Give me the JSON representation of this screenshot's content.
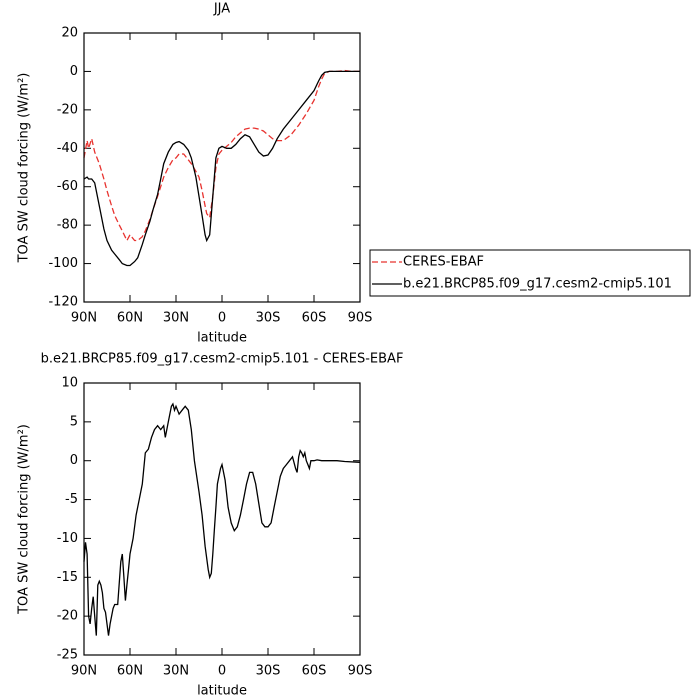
{
  "chart_data": [
    {
      "type": "line",
      "title": "JJA",
      "xlabel": "latitude",
      "ylabel": "TOA SW cloud forcing (W/m²)",
      "x": [
        90,
        88,
        87,
        85,
        83,
        80,
        77,
        75,
        72,
        70,
        67,
        65,
        62,
        60,
        57,
        55,
        52,
        50,
        47,
        45,
        42,
        40,
        38,
        35,
        32,
        30,
        28,
        25,
        22,
        20,
        17,
        15,
        13,
        11,
        10,
        8,
        6,
        4,
        2,
        0,
        -3,
        -6,
        -9,
        -12,
        -15,
        -18,
        -21,
        -24,
        -27,
        -30,
        -33,
        -36,
        -40,
        -45,
        -50,
        -55,
        -60,
        -63,
        -65,
        -67,
        -70,
        -75,
        -80,
        -85,
        -90
      ],
      "series": [
        {
          "name": "CERES-EBAF",
          "color": "#e8332f",
          "dash": true,
          "values": [
            -45,
            -36,
            -40,
            -35,
            -42,
            -48,
            -56,
            -62,
            -70,
            -75,
            -80,
            -83,
            -88,
            -85,
            -88,
            -88,
            -86,
            -83,
            -77,
            -72,
            -65,
            -60,
            -55,
            -50,
            -46,
            -45,
            -43,
            -43,
            -46,
            -48,
            -52,
            -55,
            -62,
            -70,
            -74,
            -76,
            -65,
            -50,
            -43,
            -41,
            -39,
            -37,
            -34,
            -32,
            -30,
            -29.5,
            -29.5,
            -30,
            -31,
            -33,
            -35,
            -36,
            -36,
            -33,
            -28,
            -22,
            -15,
            -8,
            -4,
            -1,
            0,
            0,
            0.5,
            0,
            0
          ]
        },
        {
          "name": "b.e21.BRCP85.f09_g17.cesm2-cmip5.101",
          "color": "#000000",
          "dash": false,
          "values": [
            -56,
            -55,
            -56,
            -56,
            -58,
            -70,
            -82,
            -88,
            -93,
            -95,
            -98,
            -100,
            -101,
            -101,
            -99,
            -97,
            -90,
            -85,
            -78,
            -72,
            -64,
            -56,
            -48,
            -42,
            -38,
            -37,
            -36.5,
            -38,
            -41,
            -45,
            -55,
            -65,
            -75,
            -85,
            -88,
            -85,
            -65,
            -45,
            -40,
            -39,
            -40,
            -40,
            -38,
            -35,
            -33,
            -34,
            -38,
            -42,
            -44,
            -43.5,
            -40,
            -35,
            -30,
            -25,
            -20,
            -15,
            -10,
            -5,
            -2,
            -0.5,
            0,
            0,
            0,
            0,
            0
          ]
        }
      ],
      "xlim": [
        90,
        -90
      ],
      "xticks": [
        {
          "value": 90,
          "label": "90N"
        },
        {
          "value": 60,
          "label": "60N"
        },
        {
          "value": 30,
          "label": "30N"
        },
        0,
        {
          "value": -30,
          "label": "30S"
        },
        {
          "value": -60,
          "label": "60S"
        },
        {
          "value": -90,
          "label": "90S"
        }
      ],
      "ylim": [
        -120,
        20
      ],
      "yticks": [
        -120,
        -100,
        -80,
        -60,
        -40,
        -20,
        0,
        20
      ],
      "legend": "right"
    },
    {
      "type": "line",
      "title": "b.e21.BRCP85.f09_g17.cesm2-cmip5.101 - CERES-EBAF",
      "xlabel": "latitude",
      "ylabel": "TOA SW cloud forcing (W/m²)",
      "x": [
        90,
        89,
        88,
        87,
        86,
        85,
        84,
        83,
        82,
        81,
        80,
        79,
        78,
        77,
        76,
        75,
        74,
        73,
        72,
        71,
        70,
        68,
        66,
        65,
        64,
        63,
        62,
        61,
        60,
        58,
        56,
        54,
        52,
        50,
        48,
        46,
        44,
        42,
        40,
        38,
        37,
        35,
        33,
        32,
        31,
        30,
        28,
        26,
        24,
        22,
        20,
        18,
        15,
        13,
        11,
        9,
        8,
        7,
        6,
        5,
        4,
        3,
        1,
        0,
        -2,
        -4,
        -6,
        -8,
        -10,
        -12,
        -14,
        -16,
        -18,
        -20,
        -22,
        -24,
        -26,
        -28,
        -30,
        -32,
        -34,
        -36,
        -38,
        -40,
        -42,
        -44,
        -46,
        -48,
        -49,
        -50,
        -51,
        -52,
        -53,
        -54,
        -55,
        -56,
        -57,
        -58,
        -60,
        -62,
        -65,
        -70,
        -75,
        -80,
        -90
      ],
      "series": [
        {
          "color": "#000000",
          "dash": false,
          "values": [
            -13,
            -10.5,
            -12,
            -20,
            -21,
            -19,
            -17.5,
            -20,
            -22.5,
            -16,
            -15.5,
            -16,
            -17,
            -19,
            -19.5,
            -21,
            -22.5,
            -21,
            -20,
            -19,
            -18.5,
            -18.5,
            -13,
            -12,
            -15,
            -18,
            -16,
            -14,
            -12,
            -10,
            -7,
            -5,
            -3,
            1,
            1.5,
            3,
            4,
            4.5,
            4,
            4.5,
            3,
            5,
            7,
            7.3,
            6.5,
            7,
            6,
            6.5,
            7,
            6.5,
            4,
            0,
            -4,
            -7,
            -11,
            -14,
            -15,
            -14.5,
            -12,
            -9,
            -6,
            -3,
            -1,
            -0.5,
            -2.5,
            -6,
            -8,
            -9,
            -8.5,
            -7,
            -5,
            -3,
            -1.5,
            -1.5,
            -3,
            -5.5,
            -8,
            -8.5,
            -8.5,
            -8,
            -6,
            -4,
            -2,
            -1,
            -0.5,
            0,
            0.5,
            -1,
            -1.5,
            0.5,
            1.3,
            1,
            0.5,
            1,
            0,
            -0.5,
            -1,
            0,
            0,
            0.1,
            0,
            0,
            0,
            -0.1,
            -0.2
          ]
        }
      ],
      "xlim": [
        90,
        -90
      ],
      "xticks": [
        {
          "value": 90,
          "label": "90N"
        },
        {
          "value": 60,
          "label": "60N"
        },
        {
          "value": 30,
          "label": "30N"
        },
        0,
        {
          "value": -30,
          "label": "30S"
        },
        {
          "value": -60,
          "label": "60S"
        },
        {
          "value": -90,
          "label": "90S"
        }
      ],
      "ylim": [
        -25,
        10
      ],
      "yticks": [
        -25,
        -20,
        -15,
        -10,
        -5,
        0,
        5,
        10
      ]
    }
  ]
}
